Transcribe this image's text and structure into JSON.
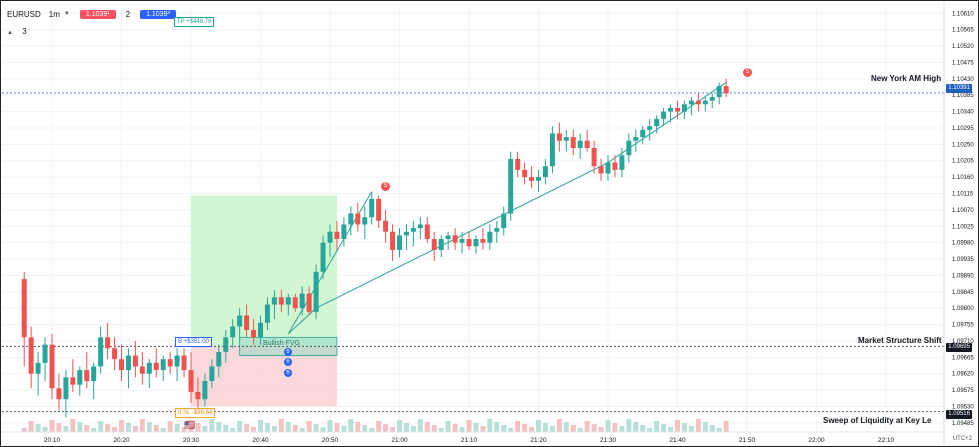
{
  "toolbar": {
    "symbol": "EURUSD",
    "interval": "1m",
    "sell_price": "1.1039¹",
    "quantity": "2",
    "buy_price": "1.1039³",
    "row2": "3"
  },
  "tp_chip": "TP +$448.76",
  "annotations": {
    "ny_high": "New York AM High",
    "mss": "Market Structure Shift",
    "sweep": "Sweep of Liquidity at Key Le"
  },
  "position": {
    "buy_label": "B  +$351.00",
    "sl_label": "0  SL  -$99.64",
    "fvg_label": "Bullish FVG"
  },
  "signals": {
    "sell": "S",
    "buy": "B"
  },
  "price_tags": {
    "ny": "1.10391",
    "mss": "1.09695",
    "sweep": "1.09516"
  },
  "timezone": "UTC+2",
  "colors": {
    "up": "#26a69a",
    "down": "#ef5350",
    "tp_zone": "#cdf5cd",
    "sl_zone": "#fbd5d6",
    "tag_blue": "#1f5fbf",
    "tag_dark": "#131722"
  },
  "chart_data": {
    "type": "candlestick",
    "symbol": "EURUSD",
    "interval": "1m",
    "y_ticks": [
      "1.10610",
      "1.10565",
      "1.10520",
      "1.10475",
      "1.10430",
      "1.10385",
      "1.10340",
      "1.10295",
      "1.10250",
      "1.10205",
      "1.10160",
      "1.10115",
      "1.10070",
      "1.10025",
      "1.09980",
      "1.09935",
      "1.09890",
      "1.09845",
      "1.09800",
      "1.09755",
      "1.09710",
      "1.09665",
      "1.09620",
      "1.09575",
      "1.09530",
      "1.09485"
    ],
    "x_ticks": [
      "20:10",
      "20:20",
      "20:30",
      "20:40",
      "20:50",
      "21:00",
      "21:10",
      "21:20",
      "21:30",
      "21:40",
      "21:50",
      "22:00",
      "22:10"
    ],
    "ylim": [
      1.0946,
      1.1063
    ],
    "levels": [
      {
        "name": "New York AM High",
        "price": 1.10391
      },
      {
        "name": "Market Structure Shift",
        "price": 1.09695
      },
      {
        "name": "Sweep of Liquidity at Key Le",
        "price": 1.09516
      }
    ],
    "candles": [
      {
        "t": "20:06",
        "o": 1.0988,
        "h": 1.099,
        "l": 1.0964,
        "c": 1.0972
      },
      {
        "t": "20:07",
        "o": 1.0972,
        "h": 1.0975,
        "l": 1.0958,
        "c": 1.0962
      },
      {
        "t": "20:08",
        "o": 1.0962,
        "h": 1.0968,
        "l": 1.0956,
        "c": 1.0965
      },
      {
        "t": "20:09",
        "o": 1.0965,
        "h": 1.0972,
        "l": 1.096,
        "c": 1.097
      },
      {
        "t": "20:10",
        "o": 1.097,
        "h": 1.0973,
        "l": 1.0955,
        "c": 1.0958
      },
      {
        "t": "20:11",
        "o": 1.0958,
        "h": 1.0962,
        "l": 1.0952,
        "c": 1.0955
      },
      {
        "t": "20:12",
        "o": 1.0955,
        "h": 1.0963,
        "l": 1.095,
        "c": 1.0961
      },
      {
        "t": "20:13",
        "o": 1.0961,
        "h": 1.0966,
        "l": 1.0957,
        "c": 1.0959
      },
      {
        "t": "20:14",
        "o": 1.0959,
        "h": 1.0964,
        "l": 1.0956,
        "c": 1.0963
      },
      {
        "t": "20:15",
        "o": 1.0963,
        "h": 1.0968,
        "l": 1.0958,
        "c": 1.096
      },
      {
        "t": "20:16",
        "o": 1.096,
        "h": 1.0965,
        "l": 1.0955,
        "c": 1.0964
      },
      {
        "t": "20:17",
        "o": 1.0964,
        "h": 1.0975,
        "l": 1.0962,
        "c": 1.0972
      },
      {
        "t": "20:18",
        "o": 1.0972,
        "h": 1.0976,
        "l": 1.0966,
        "c": 1.0969
      },
      {
        "t": "20:19",
        "o": 1.0969,
        "h": 1.0972,
        "l": 1.0963,
        "c": 1.0966
      },
      {
        "t": "20:20",
        "o": 1.0966,
        "h": 1.097,
        "l": 1.096,
        "c": 1.0963
      },
      {
        "t": "20:21",
        "o": 1.0963,
        "h": 1.0969,
        "l": 1.0958,
        "c": 1.0967
      },
      {
        "t": "20:22",
        "o": 1.0967,
        "h": 1.0971,
        "l": 1.0961,
        "c": 1.0964
      },
      {
        "t": "20:23",
        "o": 1.0964,
        "h": 1.0968,
        "l": 1.0959,
        "c": 1.0962
      },
      {
        "t": "20:24",
        "o": 1.0962,
        "h": 1.0966,
        "l": 1.0958,
        "c": 1.0965
      },
      {
        "t": "20:25",
        "o": 1.0965,
        "h": 1.0969,
        "l": 1.0961,
        "c": 1.0963
      },
      {
        "t": "20:26",
        "o": 1.0963,
        "h": 1.0967,
        "l": 1.096,
        "c": 1.0966
      },
      {
        "t": "20:27",
        "o": 1.0966,
        "h": 1.0968,
        "l": 1.0962,
        "c": 1.0964
      },
      {
        "t": "20:28",
        "o": 1.0964,
        "h": 1.0969,
        "l": 1.096,
        "c": 1.0967
      },
      {
        "t": "20:29",
        "o": 1.0967,
        "h": 1.0969,
        "l": 1.0961,
        "c": 1.0963
      },
      {
        "t": "20:30",
        "o": 1.0963,
        "h": 1.0968,
        "l": 1.0954,
        "c": 1.0957
      },
      {
        "t": "20:31",
        "o": 1.0957,
        "h": 1.0961,
        "l": 1.0952,
        "c": 1.0955
      },
      {
        "t": "20:32",
        "o": 1.0955,
        "h": 1.0962,
        "l": 1.0953,
        "c": 1.096
      },
      {
        "t": "20:33",
        "o": 1.096,
        "h": 1.0966,
        "l": 1.0958,
        "c": 1.0964
      },
      {
        "t": "20:34",
        "o": 1.0964,
        "h": 1.097,
        "l": 1.0961,
        "c": 1.0968
      },
      {
        "t": "20:35",
        "o": 1.0968,
        "h": 1.0974,
        "l": 1.0965,
        "c": 1.0972
      },
      {
        "t": "20:36",
        "o": 1.0972,
        "h": 1.0977,
        "l": 1.0969,
        "c": 1.0975
      },
      {
        "t": "20:37",
        "o": 1.0975,
        "h": 1.098,
        "l": 1.0971,
        "c": 1.0978
      },
      {
        "t": "20:38",
        "o": 1.0978,
        "h": 1.0981,
        "l": 1.0972,
        "c": 1.0974
      },
      {
        "t": "20:39",
        "o": 1.0974,
        "h": 1.0977,
        "l": 1.097,
        "c": 1.0972
      },
      {
        "t": "20:40",
        "o": 1.0972,
        "h": 1.0978,
        "l": 1.097,
        "c": 1.0976
      },
      {
        "t": "20:41",
        "o": 1.0976,
        "h": 1.0983,
        "l": 1.0974,
        "c": 1.0981
      },
      {
        "t": "20:42",
        "o": 1.0981,
        "h": 1.0985,
        "l": 1.0977,
        "c": 1.0983
      },
      {
        "t": "20:43",
        "o": 1.0983,
        "h": 1.0985,
        "l": 1.0979,
        "c": 1.0981
      },
      {
        "t": "20:44",
        "o": 1.0981,
        "h": 1.0984,
        "l": 1.0978,
        "c": 1.0983
      },
      {
        "t": "20:45",
        "o": 1.0983,
        "h": 1.0984,
        "l": 1.0979,
        "c": 1.098
      },
      {
        "t": "20:46",
        "o": 1.098,
        "h": 1.0986,
        "l": 1.0978,
        "c": 1.0984
      },
      {
        "t": "20:47",
        "o": 1.0984,
        "h": 1.0986,
        "l": 1.0978,
        "c": 1.0979
      },
      {
        "t": "20:48",
        "o": 1.0979,
        "h": 1.0992,
        "l": 1.0977,
        "c": 1.099
      },
      {
        "t": "20:49",
        "o": 1.099,
        "h": 1.1,
        "l": 1.0988,
        "c": 1.0998
      },
      {
        "t": "20:50",
        "o": 1.0998,
        "h": 1.1003,
        "l": 1.0994,
        "c": 1.1001
      },
      {
        "t": "20:51",
        "o": 1.1001,
        "h": 1.1004,
        "l": 1.0996,
        "c": 1.0999
      },
      {
        "t": "20:52",
        "o": 1.0999,
        "h": 1.1005,
        "l": 1.0997,
        "c": 1.1003
      },
      {
        "t": "20:53",
        "o": 1.1003,
        "h": 1.1008,
        "l": 1.1,
        "c": 1.1006
      },
      {
        "t": "20:54",
        "o": 1.1006,
        "h": 1.1009,
        "l": 1.1001,
        "c": 1.1003
      },
      {
        "t": "20:55",
        "o": 1.1003,
        "h": 1.1008,
        "l": 1.0999,
        "c": 1.1005
      },
      {
        "t": "20:56",
        "o": 1.1005,
        "h": 1.1012,
        "l": 1.1003,
        "c": 1.101
      },
      {
        "t": "20:57",
        "o": 1.101,
        "h": 1.1011,
        "l": 1.1002,
        "c": 1.1004
      },
      {
        "t": "20:58",
        "o": 1.1004,
        "h": 1.1007,
        "l": 1.0998,
        "c": 1.1001
      },
      {
        "t": "20:59",
        "o": 1.1001,
        "h": 1.1003,
        "l": 1.0993,
        "c": 1.0996
      },
      {
        "t": "21:00",
        "o": 1.0996,
        "h": 1.1002,
        "l": 1.0994,
        "c": 1.1
      },
      {
        "t": "21:01",
        "o": 1.1,
        "h": 1.1003,
        "l": 1.0996,
        "c": 1.1001
      },
      {
        "t": "21:02",
        "o": 1.1001,
        "h": 1.1004,
        "l": 1.0997,
        "c": 1.1002
      },
      {
        "t": "21:03",
        "o": 1.1002,
        "h": 1.1005,
        "l": 1.0999,
        "c": 1.1003
      },
      {
        "t": "21:04",
        "o": 1.1003,
        "h": 1.1005,
        "l": 1.0998,
        "c": 1.0999
      },
      {
        "t": "21:05",
        "o": 1.0999,
        "h": 1.1001,
        "l": 1.0993,
        "c": 1.0996
      },
      {
        "t": "21:06",
        "o": 1.0996,
        "h": 1.1,
        "l": 1.0994,
        "c": 1.0999
      },
      {
        "t": "21:07",
        "o": 1.0999,
        "h": 1.1001,
        "l": 1.0996,
        "c": 1.1
      },
      {
        "t": "21:08",
        "o": 1.1,
        "h": 1.1002,
        "l": 1.0996,
        "c": 1.0998
      },
      {
        "t": "21:09",
        "o": 1.0998,
        "h": 1.1001,
        "l": 1.0995,
        "c": 1.0999
      },
      {
        "t": "21:10",
        "o": 1.0999,
        "h": 1.1001,
        "l": 1.0996,
        "c": 1.0997
      },
      {
        "t": "21:11",
        "o": 1.0997,
        "h": 1.1,
        "l": 1.0995,
        "c": 1.0999
      },
      {
        "t": "21:12",
        "o": 1.0999,
        "h": 1.1002,
        "l": 1.0996,
        "c": 1.0998
      },
      {
        "t": "21:13",
        "o": 1.0998,
        "h": 1.1003,
        "l": 1.0996,
        "c": 1.1001
      },
      {
        "t": "21:14",
        "o": 1.1001,
        "h": 1.1004,
        "l": 1.0998,
        "c": 1.1002
      },
      {
        "t": "21:15",
        "o": 1.1002,
        "h": 1.1008,
        "l": 1.1,
        "c": 1.1006
      },
      {
        "t": "21:16",
        "o": 1.1006,
        "h": 1.1023,
        "l": 1.1004,
        "c": 1.1021
      },
      {
        "t": "21:17",
        "o": 1.1021,
        "h": 1.1023,
        "l": 1.1016,
        "c": 1.1018
      },
      {
        "t": "21:18",
        "o": 1.1018,
        "h": 1.102,
        "l": 1.1014,
        "c": 1.1016
      },
      {
        "t": "21:19",
        "o": 1.1016,
        "h": 1.1019,
        "l": 1.1013,
        "c": 1.1015
      },
      {
        "t": "21:20",
        "o": 1.1015,
        "h": 1.1018,
        "l": 1.1012,
        "c": 1.1016
      },
      {
        "t": "21:21",
        "o": 1.1016,
        "h": 1.1021,
        "l": 1.1014,
        "c": 1.1019
      },
      {
        "t": "21:22",
        "o": 1.1019,
        "h": 1.103,
        "l": 1.1017,
        "c": 1.1028
      },
      {
        "t": "21:23",
        "o": 1.1028,
        "h": 1.1031,
        "l": 1.1023,
        "c": 1.1026
      },
      {
        "t": "21:24",
        "o": 1.1026,
        "h": 1.1029,
        "l": 1.1023,
        "c": 1.1027
      },
      {
        "t": "21:25",
        "o": 1.1027,
        "h": 1.1029,
        "l": 1.1022,
        "c": 1.1024
      },
      {
        "t": "21:26",
        "o": 1.1024,
        "h": 1.1028,
        "l": 1.1021,
        "c": 1.1026
      },
      {
        "t": "21:27",
        "o": 1.1026,
        "h": 1.1029,
        "l": 1.1023,
        "c": 1.1024
      },
      {
        "t": "21:28",
        "o": 1.1024,
        "h": 1.1026,
        "l": 1.1017,
        "c": 1.1019
      },
      {
        "t": "21:29",
        "o": 1.1019,
        "h": 1.1021,
        "l": 1.1015,
        "c": 1.1017
      },
      {
        "t": "21:30",
        "o": 1.1017,
        "h": 1.1022,
        "l": 1.1015,
        "c": 1.102
      },
      {
        "t": "21:31",
        "o": 1.102,
        "h": 1.1022,
        "l": 1.1016,
        "c": 1.1018
      },
      {
        "t": "21:32",
        "o": 1.1018,
        "h": 1.1024,
        "l": 1.1016,
        "c": 1.1022
      },
      {
        "t": "21:33",
        "o": 1.1022,
        "h": 1.1028,
        "l": 1.102,
        "c": 1.1026
      },
      {
        "t": "21:34",
        "o": 1.1026,
        "h": 1.1029,
        "l": 1.1023,
        "c": 1.1027
      },
      {
        "t": "21:35",
        "o": 1.1027,
        "h": 1.103,
        "l": 1.1025,
        "c": 1.1029
      },
      {
        "t": "21:36",
        "o": 1.1029,
        "h": 1.1032,
        "l": 1.1026,
        "c": 1.103
      },
      {
        "t": "21:37",
        "o": 1.103,
        "h": 1.1033,
        "l": 1.1028,
        "c": 1.1032
      },
      {
        "t": "21:38",
        "o": 1.1032,
        "h": 1.1035,
        "l": 1.103,
        "c": 1.1034
      },
      {
        "t": "21:39",
        "o": 1.1034,
        "h": 1.1036,
        "l": 1.1031,
        "c": 1.1035
      },
      {
        "t": "21:40",
        "o": 1.1035,
        "h": 1.1037,
        "l": 1.1032,
        "c": 1.1034
      },
      {
        "t": "21:41",
        "o": 1.1034,
        "h": 1.1037,
        "l": 1.1032,
        "c": 1.1036
      },
      {
        "t": "21:42",
        "o": 1.1036,
        "h": 1.1038,
        "l": 1.1033,
        "c": 1.1037
      },
      {
        "t": "21:43",
        "o": 1.1037,
        "h": 1.1039,
        "l": 1.1034,
        "c": 1.1036
      },
      {
        "t": "21:44",
        "o": 1.1036,
        "h": 1.1038,
        "l": 1.1034,
        "c": 1.1037
      },
      {
        "t": "21:45",
        "o": 1.1037,
        "h": 1.1039,
        "l": 1.1035,
        "c": 1.1038
      },
      {
        "t": "21:46",
        "o": 1.1038,
        "h": 1.1042,
        "l": 1.1036,
        "c": 1.1041
      },
      {
        "t": "21:47",
        "o": 1.1041,
        "h": 1.1043,
        "l": 1.1038,
        "c": 1.1039
      }
    ]
  }
}
